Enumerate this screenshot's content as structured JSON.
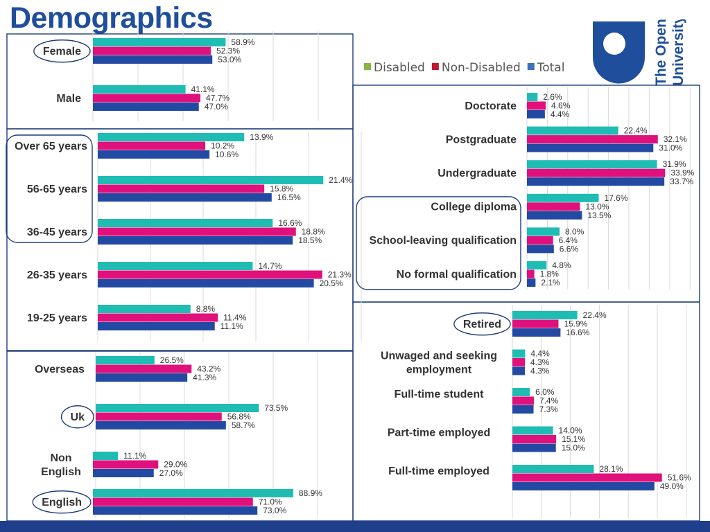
{
  "title": "Demographics",
  "logo": {
    "line1": "The Open",
    "line2": "University"
  },
  "legend": [
    {
      "name": "Disabled",
      "color": "#8ab547"
    },
    {
      "name": "Non-Disabled",
      "color": "#c0182f"
    },
    {
      "name": "Total",
      "color": "#3b73b9"
    }
  ],
  "series_colors": [
    "#1fbcb4",
    "#e0107c",
    "#234aa3"
  ],
  "chart_data": [
    {
      "id": "gender",
      "type": "bar",
      "orientation": "horizontal",
      "series": [
        "Disabled",
        "Non-Disabled",
        "Total"
      ],
      "categories": [
        "Female",
        "Male"
      ],
      "values": [
        [
          58.9,
          52.3,
          53.0
        ],
        [
          41.1,
          47.7,
          47.0
        ]
      ],
      "labels": [
        [
          "58.9%",
          "52.3%",
          "53.0%"
        ],
        [
          "41.1%",
          "47.7%",
          "47.0%"
        ]
      ],
      "highlighted": [
        "Female"
      ],
      "xlim": [
        0,
        100
      ]
    },
    {
      "id": "age",
      "type": "bar",
      "orientation": "horizontal",
      "series": [
        "Disabled",
        "Non-Disabled",
        "Total"
      ],
      "categories": [
        "Over 65 years",
        "56-65 years",
        "36-45 years",
        "26-35 years",
        "19-25 years"
      ],
      "values": [
        [
          13.9,
          10.2,
          10.6
        ],
        [
          21.4,
          15.8,
          16.5
        ],
        [
          16.6,
          18.8,
          18.5
        ],
        [
          14.7,
          21.3,
          20.5
        ],
        [
          8.8,
          11.4,
          11.1
        ]
      ],
      "labels": [
        [
          "13.9%",
          "10.2%",
          "10.6%"
        ],
        [
          "21.4%",
          "15.8%",
          "16.5%"
        ],
        [
          "16.6%",
          "18.8%",
          "18.5%"
        ],
        [
          "14.7%",
          "21.3%",
          "20.5%"
        ],
        [
          "8.8%",
          "11.4%",
          "11.1%"
        ]
      ],
      "highlighted": [
        "Over 65 years",
        "56-65 years",
        "36-45 years"
      ],
      "xlim": [
        0,
        25
      ]
    },
    {
      "id": "residence",
      "type": "bar",
      "orientation": "horizontal",
      "series": [
        "Disabled",
        "Non-Disabled",
        "Total"
      ],
      "categories": [
        "Overseas",
        "Uk"
      ],
      "values": [
        [
          26.5,
          43.2,
          41.3
        ],
        [
          73.5,
          56.8,
          58.7
        ]
      ],
      "labels": [
        [
          "26.5%",
          "43.2%",
          "41.3%"
        ],
        [
          "73.5%",
          "56.8%",
          "58.7%"
        ]
      ],
      "highlighted": [
        "Uk"
      ],
      "xlim": [
        0,
        100
      ]
    },
    {
      "id": "language",
      "type": "bar",
      "orientation": "horizontal",
      "series": [
        "Disabled",
        "Non-Disabled",
        "Total"
      ],
      "categories": [
        "Non English",
        "English"
      ],
      "values": [
        [
          11.1,
          29.0,
          27.0
        ],
        [
          88.9,
          71.0,
          73.0
        ]
      ],
      "labels": [
        [
          "11.1%",
          "29.0%",
          "27.0%"
        ],
        [
          "88.9%",
          "71.0%",
          "73.0%"
        ]
      ],
      "highlighted": [
        "English"
      ],
      "xlim": [
        0,
        100
      ]
    },
    {
      "id": "qualification",
      "type": "bar",
      "orientation": "horizontal",
      "series": [
        "Disabled",
        "Non-Disabled",
        "Total"
      ],
      "categories": [
        "Doctorate",
        "Postgraduate",
        "Undergraduate",
        "College diploma",
        "School-leaving qualification",
        "No formal qualification"
      ],
      "values": [
        [
          2.6,
          4.6,
          4.4
        ],
        [
          22.4,
          32.1,
          31.0
        ],
        [
          31.9,
          33.9,
          33.7
        ],
        [
          17.6,
          13.0,
          13.5
        ],
        [
          8.0,
          6.4,
          6.6
        ],
        [
          4.8,
          1.8,
          2.1
        ]
      ],
      "labels": [
        [
          "2.6%",
          "4.6%",
          "4.4%"
        ],
        [
          "22.4%",
          "32.1%",
          "31.0%"
        ],
        [
          "31.9%",
          "33.9%",
          "33.7%"
        ],
        [
          "17.6%",
          "13.0%",
          "13.5%"
        ],
        [
          "8.0%",
          "6.4%",
          "6.6%"
        ],
        [
          "4.8%",
          "1.8%",
          "2.1%"
        ]
      ],
      "highlighted": [
        "College diploma",
        "School-leaving qualification",
        "No formal qualification"
      ],
      "xlim": [
        0,
        40
      ]
    },
    {
      "id": "employment",
      "type": "bar",
      "orientation": "horizontal",
      "series": [
        "Disabled",
        "Non-Disabled",
        "Total"
      ],
      "categories": [
        "Retired",
        "Unwaged and seeking employment",
        "Full-time student",
        "Part-time employed",
        "Full-time employed"
      ],
      "values": [
        [
          22.4,
          15.9,
          16.6
        ],
        [
          4.4,
          4.3,
          4.3
        ],
        [
          6.0,
          7.4,
          7.3
        ],
        [
          14.0,
          15.1,
          15.0
        ],
        [
          28.1,
          51.6,
          49.0
        ]
      ],
      "labels": [
        [
          "22.4%",
          "15.9%",
          "16.6%"
        ],
        [
          "4.4%",
          "4.3%",
          "4.3%"
        ],
        [
          "6.0%",
          "7.4%",
          "7.3%"
        ],
        [
          "14.0%",
          "15.1%",
          "15.0%"
        ],
        [
          "28.1%",
          "51.6%",
          "49.0%"
        ]
      ],
      "highlighted": [
        "Retired"
      ],
      "xlim": [
        0,
        60
      ]
    }
  ]
}
